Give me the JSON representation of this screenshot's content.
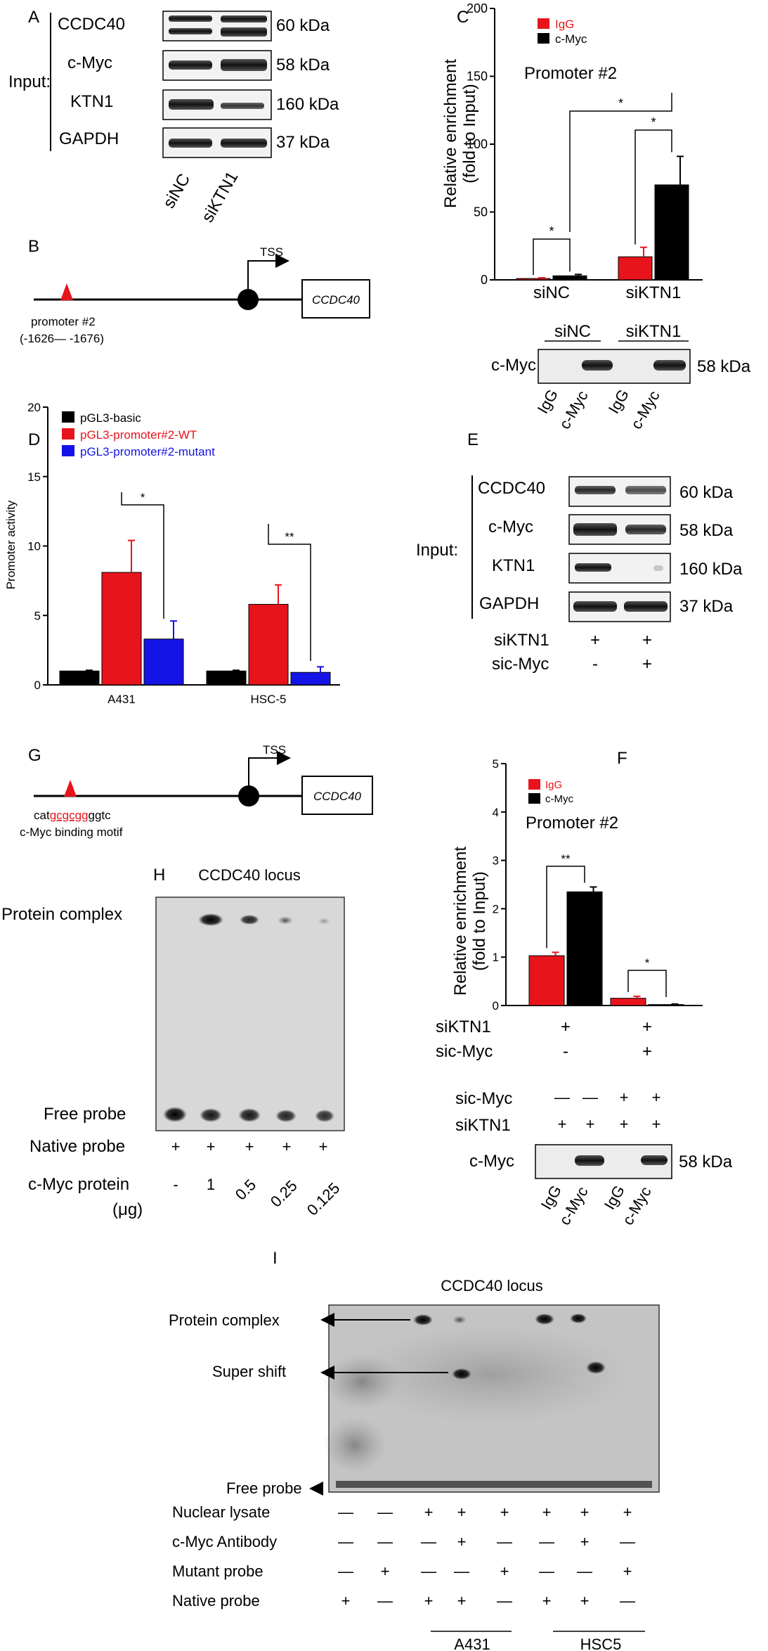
{
  "colors": {
    "igg": "#e8141c",
    "cmyc": "#000000",
    "wt": "#e8141c",
    "mutant": "#1414e6",
    "basic": "#000000",
    "red_text": "#e8141c",
    "blue_text": "#1414e6"
  },
  "panelA": {
    "letter": "A",
    "input_label": "Input:",
    "bands": [
      {
        "name": "CCDC40",
        "kda": "60 kDa"
      },
      {
        "name": "c-Myc",
        "kda": "58 kDa"
      },
      {
        "name": "KTN1",
        "kda": "160 kDa"
      },
      {
        "name": "GAPDH",
        "kda": "37 kDa"
      }
    ],
    "lanes": [
      "siNC",
      "siKTN1"
    ]
  },
  "panelB": {
    "letter": "B",
    "tss": "TSS",
    "gene": "CCDC40",
    "promoter": "promoter #2",
    "range": "(-1626— -1676)"
  },
  "panelC": {
    "letter": "C",
    "subtitle": "Promoter #2",
    "ylabel": "Relative enrichment",
    "ylabel2": "(fold to Input)",
    "legend": [
      "IgG",
      "c-Myc"
    ],
    "ticks": [
      "0",
      "50",
      "100",
      "150",
      "200"
    ],
    "sig": [
      "*",
      "*",
      "*"
    ],
    "wb_label": "c-Myc",
    "wb_kda": "58 kDa",
    "wb_groups": [
      "siNC",
      "siKTN1"
    ],
    "wb_lanes": [
      "IgG",
      "c-Myc",
      "IgG",
      "c-Myc"
    ]
  },
  "panelD": {
    "letter": "D",
    "ylabel": "Promoter activity",
    "ticks": [
      "0",
      "5",
      "10",
      "15",
      "20"
    ],
    "legend": [
      "pGL3-basic",
      "pGL3-promoter#2-WT",
      "pGL3-promoter#2-mutant"
    ],
    "sig": [
      "*",
      "**"
    ]
  },
  "panelE": {
    "letter": "E",
    "input_label": "Input:",
    "bands": [
      {
        "name": "CCDC40",
        "kda": "60 kDa"
      },
      {
        "name": "c-Myc",
        "kda": "58 kDa"
      },
      {
        "name": "KTN1",
        "kda": "160 kDa"
      },
      {
        "name": "GAPDH",
        "kda": "37 kDa"
      }
    ],
    "rows": [
      {
        "label": "siKTN1",
        "values": [
          "+",
          "+"
        ]
      },
      {
        "label": "sic-Myc",
        "values": [
          "-",
          "+"
        ]
      }
    ]
  },
  "panelF": {
    "letter": "F",
    "subtitle": "Promoter #2",
    "ylabel": "Relative enrichment",
    "ylabel2": "(fold to Input)",
    "legend": [
      "IgG",
      "c-Myc"
    ],
    "ticks": [
      "0",
      "1",
      "2",
      "3",
      "4",
      "5"
    ],
    "sig": [
      "**",
      "*"
    ],
    "rows": [
      {
        "label": "siKTN1",
        "values": [
          "+",
          "+"
        ]
      },
      {
        "label": "sic-Myc",
        "values": [
          "-",
          "+"
        ]
      }
    ],
    "wb_rows": [
      {
        "label": "sic-Myc",
        "values": [
          "—",
          "—",
          "+",
          "+"
        ]
      },
      {
        "label": "siKTN1",
        "values": [
          "+",
          "+",
          "+",
          "+"
        ]
      }
    ],
    "wb_label": "c-Myc",
    "wb_kda": "58 kDa",
    "wb_lanes": [
      "IgG",
      "c-Myc",
      "IgG",
      "c-Myc"
    ]
  },
  "panelG": {
    "letter": "G",
    "tss": "TSS",
    "gene": "CCDC40",
    "motif_pre": "cat",
    "motif_core": "gcgcgg",
    "motif_post": "ggtc",
    "motif_caption": "c-Myc binding motif"
  },
  "panelH": {
    "letter": "H",
    "title": "CCDC40 locus",
    "complex": "Protein complex",
    "free": "Free probe",
    "native_label": "Native probe",
    "native_values": [
      "+",
      "+",
      "+",
      "+",
      "+"
    ],
    "protein_label": "c-Myc protein",
    "protein_unit": "(μg)",
    "protein_values": [
      "-",
      "1",
      "0.5",
      "0.25",
      "0.125"
    ]
  },
  "panelI": {
    "letter": "I",
    "title": "CCDC40 locus",
    "complex": "Protein complex",
    "supershift": "Super shift",
    "free": "Free probe",
    "rows": [
      {
        "label": "Nuclear lysate",
        "values": [
          "—",
          "—",
          "+",
          "+",
          "+",
          "+",
          "+",
          "+"
        ]
      },
      {
        "label": "c-Myc Antibody",
        "values": [
          "—",
          "—",
          "—",
          "+",
          "—",
          "—",
          "+",
          "—"
        ]
      },
      {
        "label": "Mutant probe",
        "values": [
          "—",
          "+",
          "—",
          "—",
          "+",
          "—",
          "—",
          "+"
        ]
      },
      {
        "label": "Native probe",
        "values": [
          "+",
          "—",
          "+",
          "+",
          "—",
          "+",
          "+",
          "—"
        ]
      }
    ],
    "groups": [
      "A431",
      "HSC5"
    ]
  },
  "chart_data": [
    {
      "panel": "C",
      "type": "bar",
      "categories": [
        "siNC",
        "siKTN1"
      ],
      "series": [
        {
          "name": "IgG",
          "values": [
            1,
            17
          ],
          "errors": [
            0.5,
            7
          ]
        },
        {
          "name": "c-Myc",
          "values": [
            3,
            70
          ],
          "errors": [
            1,
            21
          ]
        }
      ],
      "ylabel": "Relative enrichment (fold to Input)",
      "ylim": [
        0,
        200
      ]
    },
    {
      "panel": "D",
      "type": "bar",
      "categories": [
        "A431",
        "HSC-5"
      ],
      "series": [
        {
          "name": "pGL3-basic",
          "values": [
            1.0,
            1.0
          ],
          "errors": [
            0.05,
            0.05
          ]
        },
        {
          "name": "pGL3-promoter#2-WT",
          "values": [
            8.1,
            5.8
          ],
          "errors": [
            2.3,
            1.4
          ]
        },
        {
          "name": "pGL3-promoter#2-mutant",
          "values": [
            3.3,
            0.9
          ],
          "errors": [
            1.3,
            0.4
          ]
        }
      ],
      "ylabel": "Promoter activity",
      "ylim": [
        0,
        20
      ]
    },
    {
      "panel": "F",
      "type": "bar",
      "categories": [
        "siKTN1 + / sic-Myc -",
        "siKTN1 + / sic-Myc +"
      ],
      "series": [
        {
          "name": "IgG",
          "values": [
            1.03,
            0.15
          ],
          "errors": [
            0.07,
            0.04
          ]
        },
        {
          "name": "c-Myc",
          "values": [
            2.35,
            0.02
          ],
          "errors": [
            0.1,
            0.01
          ]
        }
      ],
      "ylabel": "Relative enrichment (fold to Input)",
      "ylim": [
        0,
        5
      ]
    }
  ]
}
